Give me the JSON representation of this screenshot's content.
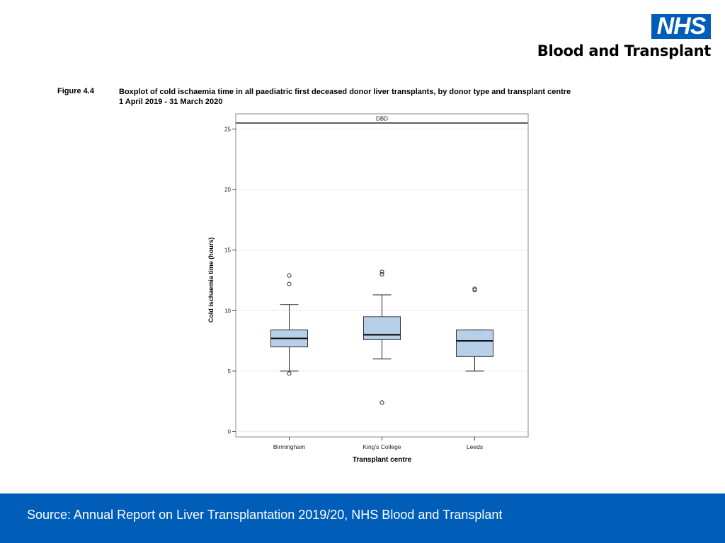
{
  "header": {
    "logo_text": "NHS",
    "org_name": "Blood and Transplant"
  },
  "figure": {
    "label": "Figure 4.4",
    "title_line1": "Boxplot of cold ischaemia time in all paediatric first deceased donor liver transplants, by donor type and transplant centre",
    "title_line2": "1 April 2019 - 31 March 2020"
  },
  "chart_data": {
    "type": "boxplot",
    "panel_label": "DBD",
    "xlabel": "Transplant centre",
    "ylabel": "Cold ischaemia time (hours)",
    "ylim": [
      0,
      25.5
    ],
    "yticks": [
      0,
      5,
      10,
      15,
      20,
      25
    ],
    "grid": true,
    "box_fill": "#b8cfe9",
    "categories": [
      "Birmingham",
      "King's College",
      "Leeds"
    ],
    "boxes": [
      {
        "category": "Birmingham",
        "whisker_low": 5.0,
        "q1": 7.0,
        "median": 7.7,
        "q3": 8.4,
        "whisker_high": 10.5,
        "outliers": [
          4.8,
          12.2,
          12.9
        ]
      },
      {
        "category": "King's College",
        "whisker_low": 6.0,
        "q1": 7.6,
        "median": 8.0,
        "q3": 9.5,
        "whisker_high": 11.3,
        "outliers": [
          2.4,
          13.0,
          13.2
        ]
      },
      {
        "category": "Leeds",
        "whisker_low": 5.0,
        "q1": 6.2,
        "median": 7.5,
        "q3": 8.4,
        "whisker_high": 8.4,
        "outliers": [
          11.7,
          11.8
        ]
      }
    ]
  },
  "footer": {
    "source": "Source: Annual Report on Liver Transplantation 2019/20, NHS Blood and Transplant"
  }
}
